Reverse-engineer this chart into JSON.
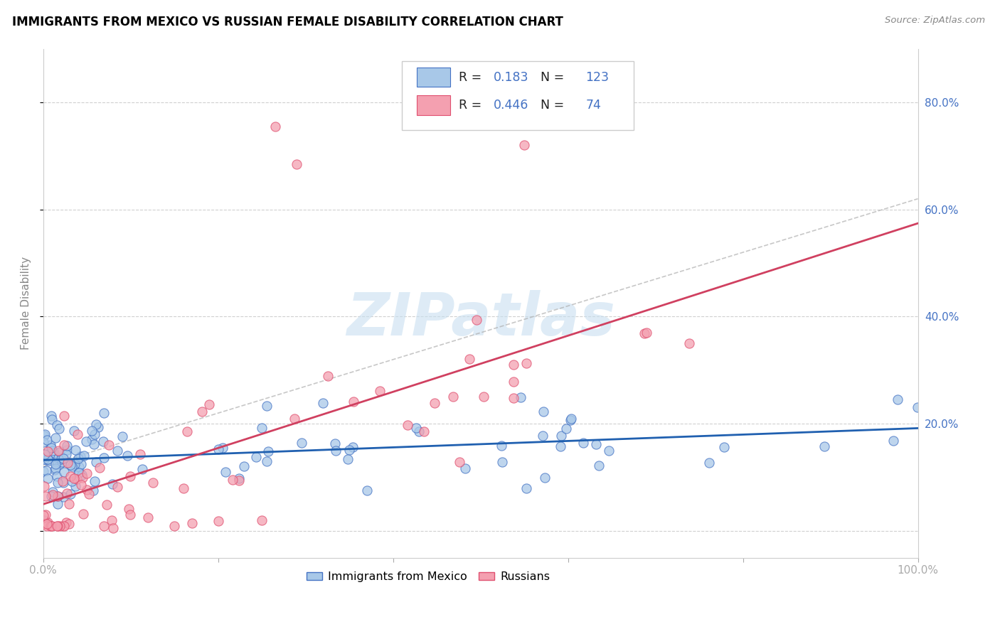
{
  "title": "IMMIGRANTS FROM MEXICO VS RUSSIAN FEMALE DISABILITY CORRELATION CHART",
  "source": "Source: ZipAtlas.com",
  "ylabel": "Female Disability",
  "xlim": [
    0.0,
    1.0
  ],
  "ylim": [
    -0.05,
    0.9
  ],
  "legend_R1": "0.183",
  "legend_N1": "123",
  "legend_R2": "0.446",
  "legend_N2": "74",
  "blue_color": "#a8c8e8",
  "blue_edge_color": "#4472c4",
  "pink_color": "#f4a0b0",
  "pink_edge_color": "#e05070",
  "blue_line_color": "#2060b0",
  "pink_line_color": "#d04060",
  "right_tick_color": "#4472c4",
  "watermark_color": "#c8dff0",
  "watermark": "ZIPatlas"
}
